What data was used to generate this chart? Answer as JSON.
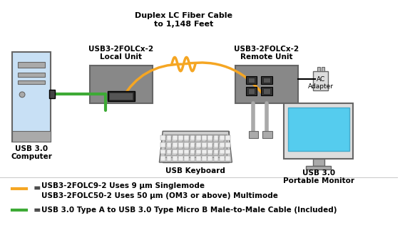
{
  "bg_color": "#ffffff",
  "title_top": "Duplex LC Fiber Cable",
  "title_top2": "to 1,148 Feet",
  "label_local_unit": "USB3-2FOLCx-2\nLocal Unit",
  "label_remote_unit": "USB3-2FOLCx-2\nRemote Unit",
  "label_computer": "USB 3.0\nComputer",
  "label_keyboard": "USB Keyboard",
  "label_monitor": "USB 3.0\nPortable Monitor",
  "label_ac": "AC\nAdapter",
  "legend_orange_line1": "USB3-2FOLC9-2 Uses 9 μm Singlemode",
  "legend_orange_line2": "USB3-2FOLC50-2 Uses 50 μm (OM3 or above) Multimode",
  "legend_green": "USB 3.0 Type A to USB 3.0 Type Micro B Male-to-Male Cable (Included)",
  "orange_color": "#F5A623",
  "green_color": "#3DAA35",
  "gray_box_color": "#888888",
  "gray_light": "#AAAAAA",
  "gray_dark": "#666666",
  "computer_blue": "#C8E0F5",
  "monitor_blue": "#55CCEE",
  "black": "#000000",
  "white": "#ffffff"
}
